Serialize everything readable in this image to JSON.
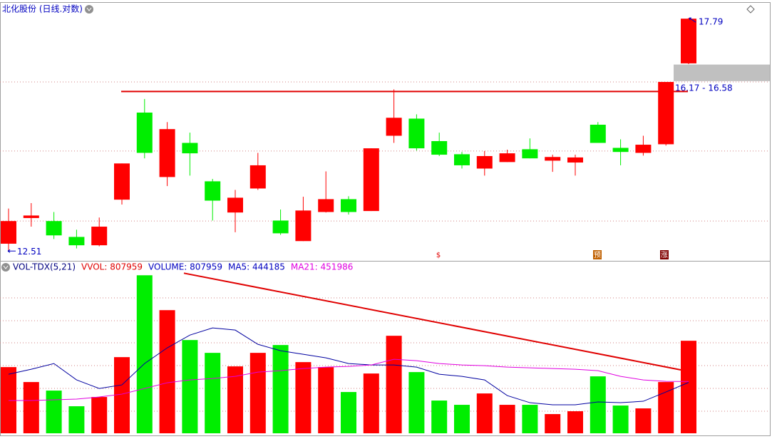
{
  "title": "北化股份 (日线.对数)",
  "chart_data": [
    {
      "type": "candlestick",
      "log_scale": true,
      "ylim": [
        12.34,
        18.18
      ],
      "ygrid": [
        16.15,
        14.55,
        13.09
      ],
      "up_color": "#ff0000",
      "down_color": "#00ee00",
      "open": [
        12.65,
        13.15,
        13.09,
        12.78,
        12.62,
        13.52,
        15.42,
        13.99,
        14.73,
        13.9,
        13.26,
        13.75,
        13.1,
        12.7,
        13.27,
        13.53,
        13.29,
        14.89,
        15.28,
        14.77,
        14.48,
        14.17,
        14.31,
        14.59,
        14.34,
        14.3,
        15.14,
        14.62,
        14.51,
        14.7,
        16.61
      ],
      "high": [
        13.34,
        13.45,
        13.27,
        12.92,
        13.16,
        14.28,
        15.74,
        15.2,
        14.96,
        13.95,
        13.72,
        14.51,
        13.32,
        13.58,
        14.11,
        13.59,
        14.61,
        15.97,
        15.38,
        14.96,
        14.53,
        14.55,
        14.58,
        14.83,
        14.47,
        14.47,
        15.2,
        14.81,
        14.89,
        16.15,
        17.79
      ],
      "low": [
        12.51,
        12.98,
        12.74,
        12.56,
        12.6,
        13.42,
        14.39,
        13.8,
        14.02,
        13.1,
        12.87,
        13.72,
        12.82,
        12.7,
        13.26,
        13.22,
        13.29,
        14.73,
        14.56,
        14.44,
        14.17,
        14.02,
        14.31,
        14.39,
        14.1,
        14.02,
        14.73,
        14.24,
        14.45,
        14.67,
        16.59
      ],
      "close": [
        13.09,
        13.2,
        12.81,
        12.62,
        12.98,
        14.28,
        14.51,
        15.04,
        14.5,
        13.5,
        13.56,
        14.24,
        12.85,
        13.3,
        13.53,
        13.27,
        14.61,
        15.3,
        14.61,
        14.47,
        14.24,
        14.44,
        14.5,
        14.39,
        14.42,
        14.41,
        14.73,
        14.53,
        14.69,
        16.15,
        17.77
      ],
      "low_mark": 12.51,
      "high_mark": 17.79,
      "gap": {
        "low": 16.17,
        "high": 16.58,
        "label": "16.17 - 16.58",
        "color": "#c0c0c0"
      },
      "resistance": 15.92,
      "resistance_color": "#e00000",
      "markers": [
        "$",
        "预",
        "涨"
      ]
    },
    {
      "type": "volume",
      "title": "VOL-TDX(5,21)",
      "legend": [
        {
          "text": "VVOL: 807959",
          "color": "#e00000"
        },
        {
          "text": "VOLUME: 807959",
          "color": "#0000c0"
        },
        {
          "text": "MA5: 444185",
          "color": "#0000c0"
        },
        {
          "text": "MA21: 451986",
          "color": "#e000e0"
        }
      ],
      "ylim": [
        0,
        1400000
      ],
      "ygrid": [
        192900,
        392000,
        591100,
        790200,
        983100,
        1182200
      ],
      "values": [
        578000,
        447500,
        372900,
        236200,
        317000,
        665000,
        1379700,
        1075200,
        814200,
        702300,
        584200,
        702300,
        770700,
        621500,
        578000,
        360500,
        522100,
        851500,
        534500,
        285900,
        248600,
        348000,
        248600,
        248600,
        167800,
        192700,
        497200,
        242400,
        217500,
        447500,
        807959
      ],
      "series": [
        {
          "color": "#0000a0",
          "values": [
            515800,
            559400,
            609100,
            466100,
            391500,
            422600,
            609100,
            745800,
            857700,
            919800,
            901200,
            776900,
            720900,
            689900,
            658800,
            609100,
            596600,
            596600,
            578000,
            515800,
            497200,
            466100,
            329400,
            267200,
            248600,
            248600,
            273500,
            267200,
            279700,
            360500,
            444185
          ]
        },
        {
          "color": "#e000e0",
          "values": [
            285900,
            285900,
            292100,
            298300,
            317000,
            341800,
            391500,
            441300,
            466100,
            478600,
            497200,
            534500,
            546900,
            565600,
            578000,
            584200,
            596600,
            646400,
            633900,
            609100,
            596600,
            590400,
            578000,
            571800,
            565600,
            559400,
            546900,
            497200,
            466100,
            453700,
            451986
          ]
        }
      ],
      "trendline": [
        1398000,
        554000
      ],
      "trendline_color": "#e00000"
    }
  ]
}
